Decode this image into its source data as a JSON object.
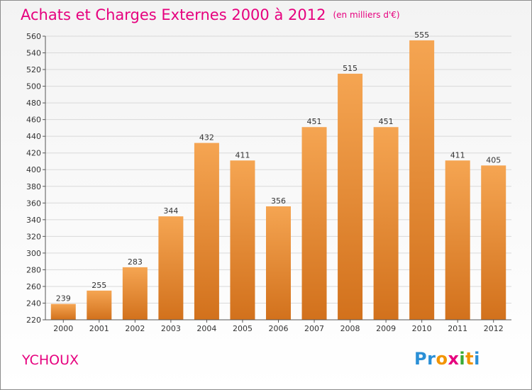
{
  "header": {
    "title": "Achats et Charges Externes 2000 à 2012",
    "unit": "(en milliers d'€)"
  },
  "commune": "YCHOUX",
  "logo": {
    "text": "Proxiti",
    "letters": [
      {
        "ch": "P",
        "color": "#2a8fd6"
      },
      {
        "ch": "r",
        "color": "#2a8fd6"
      },
      {
        "ch": "o",
        "color": "#f29400"
      },
      {
        "ch": "x",
        "color": "#e6007e"
      },
      {
        "ch": "i",
        "color": "#3aaa35"
      },
      {
        "ch": "t",
        "color": "#f29400"
      },
      {
        "ch": "i",
        "color": "#2a8fd6"
      }
    ]
  },
  "colors": {
    "title": "#e6007e",
    "bar_top": "#f5a552",
    "bar_bottom": "#d2711c",
    "grid": "#d9d9d9",
    "axis": "#555555"
  },
  "chart_data": {
    "type": "bar",
    "title": "Achats et Charges Externes 2000 à 2012",
    "categories": [
      "2000",
      "2001",
      "2002",
      "2003",
      "2004",
      "2005",
      "2006",
      "2007",
      "2008",
      "2009",
      "2010",
      "2011",
      "2012"
    ],
    "values": [
      239,
      255,
      283,
      344,
      432,
      411,
      356,
      451,
      515,
      451,
      555,
      411,
      405
    ],
    "ylim": [
      220,
      560
    ],
    "yticks": [
      220,
      240,
      260,
      280,
      300,
      320,
      340,
      360,
      380,
      400,
      420,
      440,
      460,
      480,
      500,
      520,
      540,
      560
    ],
    "xlabel": "",
    "ylabel": "",
    "grid": true,
    "legend": "none"
  }
}
